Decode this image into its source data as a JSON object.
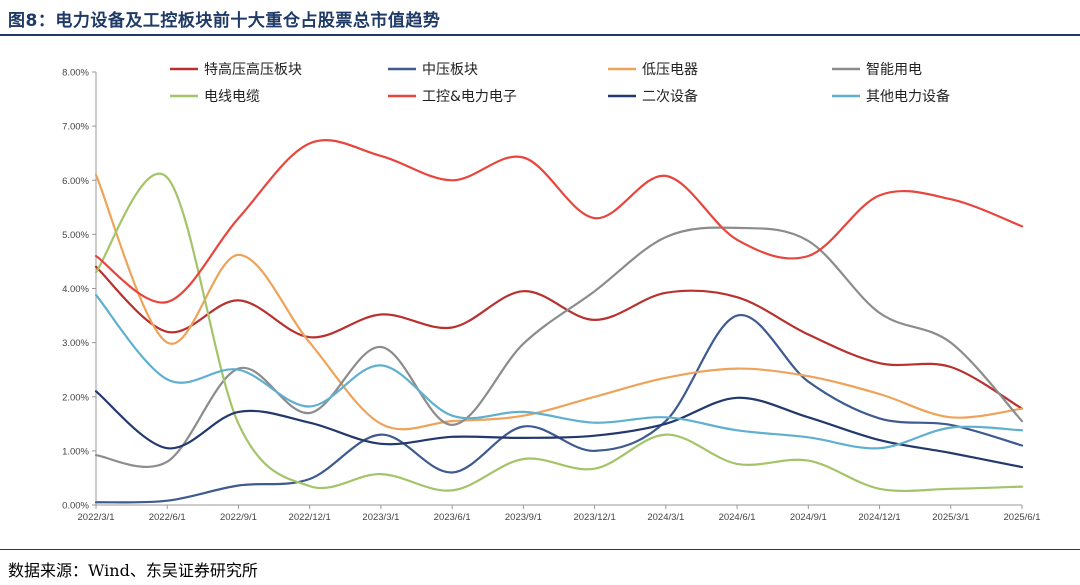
{
  "figure": {
    "title": "图8：电力设备及工控板块前十大重仓占股票总市值趋势",
    "source": "数据来源：Wind、东吴证券研究所"
  },
  "chart_data": {
    "type": "line",
    "title": "",
    "xlabel": "",
    "ylabel": "",
    "ylim": [
      0,
      8
    ],
    "yticks": [
      "0.00%",
      "1.00%",
      "2.00%",
      "3.00%",
      "4.00%",
      "5.00%",
      "6.00%",
      "7.00%",
      "8.00%"
    ],
    "x": [
      "2022/3/1",
      "2022/6/1",
      "2022/9/1",
      "2022/12/1",
      "2023/3/1",
      "2023/6/1",
      "2023/9/1",
      "2023/12/1",
      "2024/3/1",
      "2024/6/1",
      "2024/9/1",
      "2024/12/1",
      "2025/3/1",
      "2025/6/1"
    ],
    "legend_position": "top",
    "grid": false,
    "series": [
      {
        "name": "特高压高压板块",
        "color": "#b8312f",
        "values": [
          4.4,
          3.2,
          3.78,
          3.1,
          3.52,
          3.28,
          3.95,
          3.42,
          3.92,
          3.84,
          3.15,
          2.62,
          2.55,
          1.78
        ]
      },
      {
        "name": "中压板块",
        "color": "#3e5a8e",
        "values": [
          0.05,
          0.08,
          0.36,
          0.48,
          1.3,
          0.6,
          1.45,
          1.0,
          1.55,
          3.5,
          2.28,
          1.6,
          1.48,
          1.1
        ]
      },
      {
        "name": "低压电器",
        "color": "#eea35a",
        "values": [
          6.1,
          3.0,
          4.62,
          3.0,
          1.5,
          1.55,
          1.65,
          2.0,
          2.35,
          2.52,
          2.38,
          2.05,
          1.62,
          1.78
        ]
      },
      {
        "name": "智能用电",
        "color": "#8c8c8c",
        "values": [
          0.92,
          0.8,
          2.52,
          1.7,
          2.92,
          1.48,
          2.98,
          3.95,
          4.95,
          5.12,
          4.88,
          3.55,
          3.0,
          1.55
        ]
      },
      {
        "name": "电线电缆",
        "color": "#a4c46a",
        "values": [
          4.3,
          6.05,
          1.5,
          0.35,
          0.57,
          0.27,
          0.85,
          0.67,
          1.3,
          0.76,
          0.82,
          0.3,
          0.3,
          0.34
        ]
      },
      {
        "name": "工控&电力电子",
        "color": "#e8463d",
        "values": [
          4.6,
          3.75,
          5.3,
          6.68,
          6.45,
          6.0,
          6.42,
          5.3,
          6.08,
          4.9,
          4.6,
          5.72,
          5.65,
          5.15
        ]
      },
      {
        "name": "二次设备",
        "color": "#23386c",
        "values": [
          2.1,
          1.05,
          1.72,
          1.52,
          1.13,
          1.26,
          1.24,
          1.28,
          1.5,
          1.98,
          1.62,
          1.2,
          0.96,
          0.7
        ]
      },
      {
        "name": "其他电力设备",
        "color": "#5fb0cf",
        "values": [
          3.88,
          2.32,
          2.5,
          1.82,
          2.58,
          1.65,
          1.72,
          1.52,
          1.62,
          1.38,
          1.25,
          1.05,
          1.43,
          1.38
        ]
      }
    ]
  }
}
